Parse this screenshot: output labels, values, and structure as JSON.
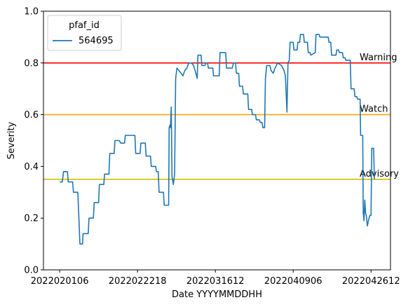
{
  "chart_data": {
    "type": "line",
    "xlabel": "Date YYYYMMDDHH",
    "ylabel": "Severity",
    "ylim": [
      0,
      1
    ],
    "yticks": [
      "0.0",
      "0.2",
      "0.4",
      "0.6",
      "0.8",
      "1.0"
    ],
    "xticks": [
      "2022020106",
      "2022022218",
      "2022031612",
      "2022040906",
      "2022042612"
    ],
    "legend": {
      "title": "pfaf_id",
      "placement": "top-left"
    },
    "series": [
      {
        "name": "564695",
        "color": "#1f77b4",
        "points": [
          [
            0,
            0.34
          ],
          [
            1,
            0.34
          ],
          [
            1.5,
            0.38
          ],
          [
            3,
            0.38
          ],
          [
            3.3,
            0.34
          ],
          [
            5,
            0.34
          ],
          [
            5.3,
            0.3
          ],
          [
            7,
            0.3
          ],
          [
            7.8,
            0.1
          ],
          [
            8.8,
            0.1
          ],
          [
            9,
            0.14
          ],
          [
            11,
            0.14
          ],
          [
            11.3,
            0.2
          ],
          [
            13,
            0.2
          ],
          [
            13.3,
            0.26
          ],
          [
            15,
            0.26
          ],
          [
            15.3,
            0.33
          ],
          [
            17,
            0.33
          ],
          [
            17.3,
            0.37
          ],
          [
            19,
            0.37
          ],
          [
            19.3,
            0.45
          ],
          [
            21,
            0.45
          ],
          [
            21.3,
            0.5
          ],
          [
            23,
            0.5
          ],
          [
            23.5,
            0.49
          ],
          [
            25,
            0.49
          ],
          [
            25.3,
            0.52
          ],
          [
            29,
            0.52
          ],
          [
            29.3,
            0.45
          ],
          [
            31,
            0.45
          ],
          [
            31.3,
            0.49
          ],
          [
            33,
            0.49
          ],
          [
            33.3,
            0.44
          ],
          [
            35,
            0.44
          ],
          [
            35.3,
            0.4
          ],
          [
            37,
            0.4
          ],
          [
            37.3,
            0.38
          ],
          [
            38,
            0.38
          ],
          [
            38.3,
            0.3
          ],
          [
            40,
            0.3
          ],
          [
            40.3,
            0.25
          ],
          [
            42,
            0.25
          ],
          [
            42.2,
            0.55
          ],
          [
            42.5,
            0.56
          ],
          [
            42.7,
            0.55
          ],
          [
            43,
            0.63
          ],
          [
            43.3,
            0.36
          ],
          [
            43.8,
            0.33
          ],
          [
            44.3,
            0.37
          ],
          [
            44.7,
            0.74
          ],
          [
            45.2,
            0.78
          ],
          [
            46,
            0.77
          ],
          [
            46.8,
            0.76
          ],
          [
            47.5,
            0.75
          ],
          [
            48.2,
            0.77
          ],
          [
            49,
            0.78
          ],
          [
            49.8,
            0.8
          ],
          [
            50.8,
            0.8
          ],
          [
            51.6,
            0.79
          ],
          [
            52.5,
            0.76
          ],
          [
            53,
            0.74
          ],
          [
            53.3,
            0.83
          ],
          [
            54.5,
            0.83
          ],
          [
            54.8,
            0.79
          ],
          [
            56,
            0.79
          ],
          [
            56.3,
            0.8
          ],
          [
            57,
            0.8
          ],
          [
            57.3,
            0.78
          ],
          [
            59,
            0.78
          ],
          [
            59.3,
            0.75
          ],
          [
            61.5,
            0.75
          ],
          [
            61.8,
            0.84
          ],
          [
            64,
            0.84
          ],
          [
            64.3,
            0.78
          ],
          [
            66.5,
            0.78
          ],
          [
            67,
            0.8
          ],
          [
            67.8,
            0.8
          ],
          [
            68.1,
            0.76
          ],
          [
            69,
            0.76
          ],
          [
            69.3,
            0.71
          ],
          [
            70.5,
            0.71
          ],
          [
            70.8,
            0.68
          ],
          [
            72.5,
            0.68
          ],
          [
            72.8,
            0.62
          ],
          [
            74,
            0.62
          ],
          [
            74.3,
            0.6
          ],
          [
            75.5,
            0.6
          ],
          [
            75.8,
            0.58
          ],
          [
            77,
            0.58
          ],
          [
            77.3,
            0.57
          ],
          [
            78,
            0.57
          ],
          [
            78.3,
            0.55
          ],
          [
            79,
            0.55
          ],
          [
            79.3,
            0.74
          ],
          [
            79.8,
            0.79
          ],
          [
            81,
            0.79
          ],
          [
            81.5,
            0.77
          ],
          [
            82.3,
            0.76
          ],
          [
            83,
            0.78
          ],
          [
            84,
            0.8
          ],
          [
            85.5,
            0.79
          ],
          [
            86.5,
            0.77
          ],
          [
            87,
            0.75
          ],
          [
            87.6,
            0.61
          ],
          [
            88,
            0.8
          ],
          [
            88.5,
            0.81
          ],
          [
            88.8,
            0.88
          ],
          [
            90,
            0.88
          ],
          [
            90.3,
            0.85
          ],
          [
            91.5,
            0.85
          ],
          [
            91.8,
            0.88
          ],
          [
            92.5,
            0.88
          ],
          [
            92.8,
            0.91
          ],
          [
            94,
            0.91
          ],
          [
            94.3,
            0.88
          ],
          [
            95.5,
            0.88
          ],
          [
            95.8,
            0.84
          ],
          [
            96.5,
            0.84
          ],
          [
            96.8,
            0.83
          ],
          [
            98.5,
            0.84
          ],
          [
            98.8,
            0.91
          ],
          [
            100,
            0.91
          ],
          [
            100.3,
            0.9
          ],
          [
            103.5,
            0.9
          ],
          [
            103.8,
            0.88
          ],
          [
            104.5,
            0.88
          ],
          [
            104.8,
            0.83
          ],
          [
            106.5,
            0.83
          ],
          [
            106.8,
            0.85
          ],
          [
            107.5,
            0.85
          ],
          [
            107.8,
            0.84
          ],
          [
            109,
            0.84
          ],
          [
            109.3,
            0.82
          ],
          [
            110,
            0.82
          ],
          [
            110.3,
            0.81
          ],
          [
            112,
            0.81
          ],
          [
            112.3,
            0.7
          ],
          [
            113.5,
            0.7
          ],
          [
            113.8,
            0.67
          ],
          [
            114.5,
            0.67
          ],
          [
            114.8,
            0.66
          ],
          [
            115.8,
            0.66
          ],
          [
            116,
            0.52
          ],
          [
            116.8,
            0.52
          ],
          [
            117,
            0.22
          ],
          [
            117.3,
            0.19
          ],
          [
            117.6,
            0.27
          ],
          [
            117.9,
            0.22
          ],
          [
            118.2,
            0.21
          ],
          [
            118.6,
            0.17
          ],
          [
            119,
            0.19
          ],
          [
            119.5,
            0.21
          ],
          [
            120,
            0.21
          ],
          [
            120.3,
            0.47
          ],
          [
            121,
            0.47
          ],
          [
            121.3,
            0.35
          ]
        ]
      }
    ],
    "thresholds": [
      {
        "label": "Warning",
        "value": 0.8,
        "color": "#ff0000"
      },
      {
        "label": "Watch",
        "value": 0.6,
        "color": "#ffa500"
      },
      {
        "label": "Advisory",
        "value": 0.35,
        "color": "#d4be00"
      }
    ]
  }
}
